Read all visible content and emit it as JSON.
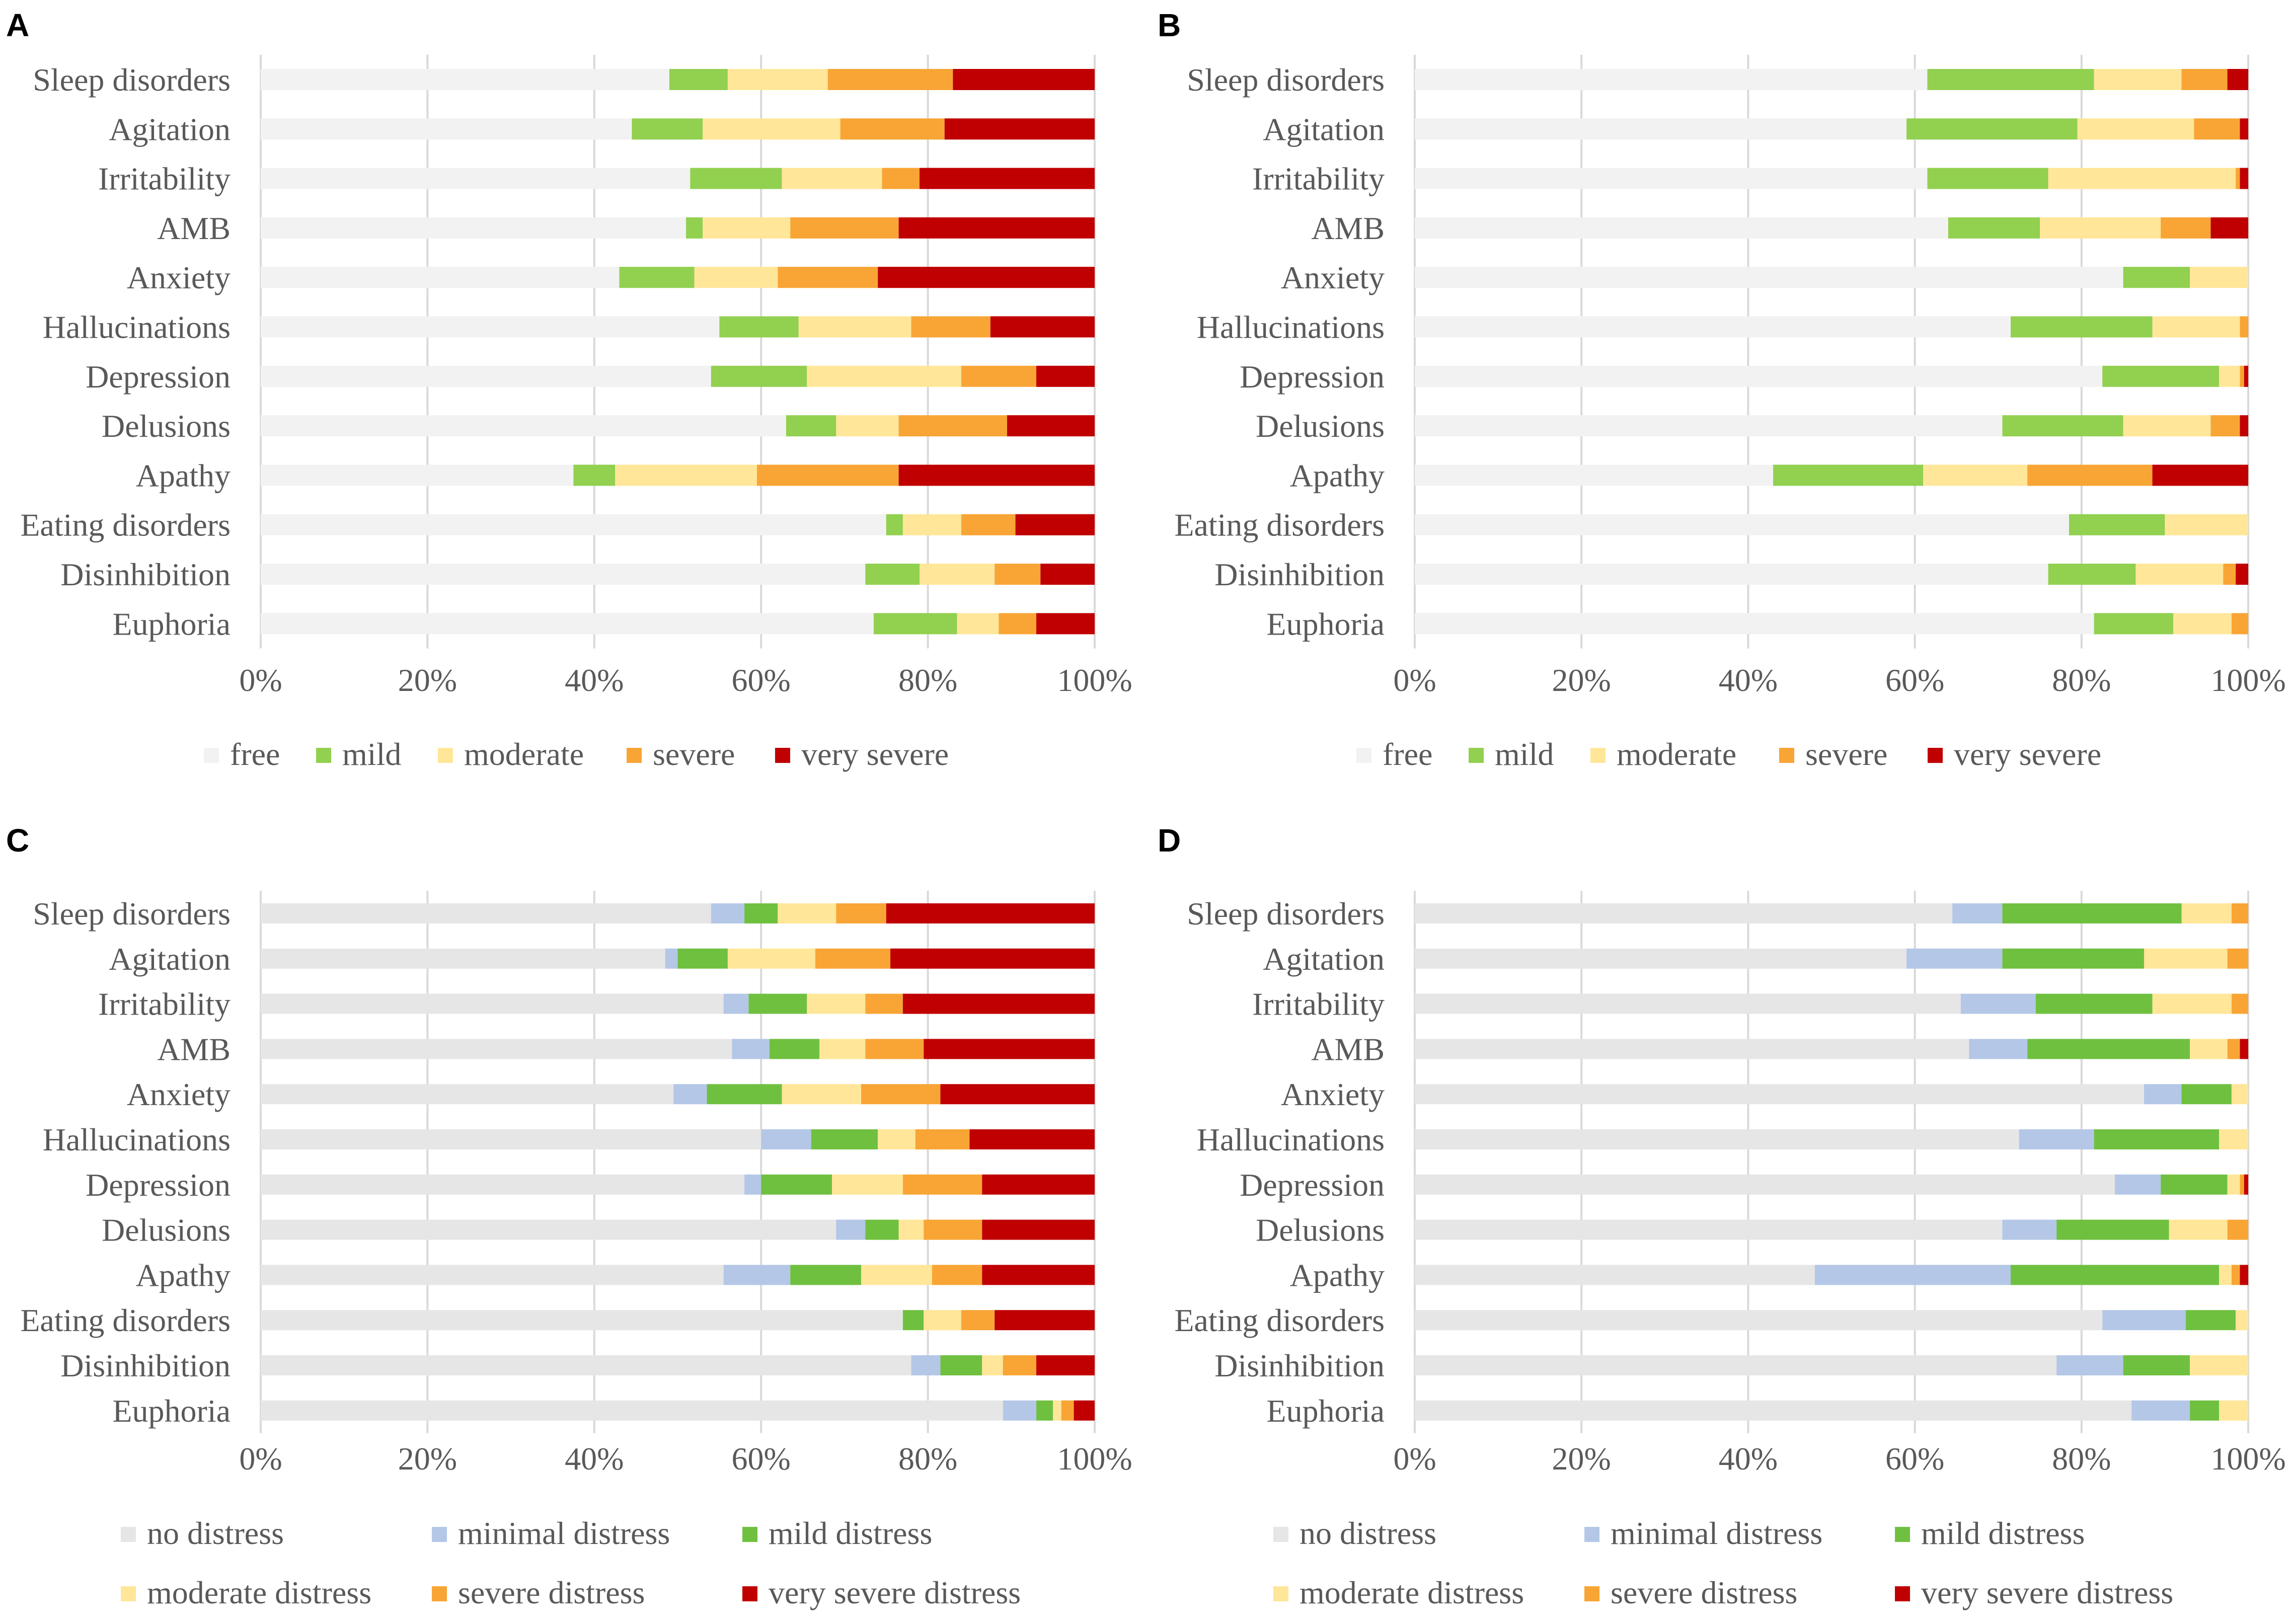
{
  "chart_data": [
    {
      "panel": "A",
      "type": "bar",
      "orientation": "horizontal",
      "stacked": "100%",
      "categories": [
        "Sleep disorders",
        "Agitation",
        "Irritability",
        "AMB",
        "Anxiety",
        "Hallucinations",
        "Depression",
        "Delusions",
        "Apathy",
        "Eating disorders",
        "Disinhibition",
        "Euphoria"
      ],
      "series": [
        {
          "name": "free",
          "color": "#f2f2f2",
          "values": [
            49,
            44.5,
            51.5,
            51,
            43,
            55,
            54,
            63,
            37.5,
            75,
            72.5,
            73.5
          ]
        },
        {
          "name": "mild",
          "color": "#92d050",
          "values": [
            7,
            8.5,
            11,
            2,
            9,
            9.5,
            11.5,
            6,
            5,
            2,
            6.5,
            10
          ]
        },
        {
          "name": "moderate",
          "color": "#ffe699",
          "values": [
            12,
            16.5,
            12,
            10.5,
            10,
            13.5,
            18.5,
            7.5,
            17,
            7,
            9,
            5
          ]
        },
        {
          "name": "severe",
          "color": "#f8a535",
          "values": [
            15,
            12.5,
            4.5,
            13,
            12,
            9.5,
            9,
            13,
            17,
            6.5,
            5.5,
            4.5
          ]
        },
        {
          "name": "very severe",
          "color": "#c00000",
          "values": [
            17,
            18,
            21,
            23.5,
            26,
            12.5,
            7,
            10.5,
            23.5,
            9.5,
            6.5,
            7
          ]
        }
      ],
      "xlim": [
        0,
        100
      ],
      "xticks": [
        "0%",
        "20%",
        "40%",
        "60%",
        "80%",
        "100%"
      ],
      "legend": [
        "free",
        "mild",
        "moderate",
        "severe",
        "very severe"
      ]
    },
    {
      "panel": "B",
      "type": "bar",
      "orientation": "horizontal",
      "stacked": "100%",
      "categories": [
        "Sleep disorders",
        "Agitation",
        "Irritability",
        "AMB",
        "Anxiety",
        "Hallucinations",
        "Depression",
        "Delusions",
        "Apathy",
        "Eating disorders",
        "Disinhibition",
        "Euphoria"
      ],
      "series": [
        {
          "name": "free",
          "color": "#f2f2f2",
          "values": [
            61.5,
            59,
            61.5,
            64,
            85,
            71.5,
            82.5,
            70.5,
            43,
            78.5,
            76,
            81.5
          ]
        },
        {
          "name": "mild",
          "color": "#92d050",
          "values": [
            20,
            20.5,
            14.5,
            11,
            8,
            17,
            14,
            14.5,
            18,
            11.5,
            10.5,
            9.5
          ]
        },
        {
          "name": "moderate",
          "color": "#ffe699",
          "values": [
            10.5,
            14,
            22.5,
            14.5,
            7,
            10.5,
            2.5,
            10.5,
            12.5,
            10,
            10.5,
            7
          ]
        },
        {
          "name": "severe",
          "color": "#f8a535",
          "values": [
            5.5,
            5.5,
            0.5,
            6,
            0,
            1,
            0.5,
            3.5,
            15,
            0,
            1.5,
            2
          ]
        },
        {
          "name": "very severe",
          "color": "#c00000",
          "values": [
            2.5,
            1,
            1,
            4.5,
            0,
            0,
            0.5,
            1,
            11.5,
            0,
            1.5,
            0
          ]
        }
      ],
      "xlim": [
        0,
        100
      ],
      "xticks": [
        "0%",
        "20%",
        "40%",
        "60%",
        "80%",
        "100%"
      ],
      "legend": [
        "free",
        "mild",
        "moderate",
        "severe",
        "very severe"
      ]
    },
    {
      "panel": "C",
      "type": "bar",
      "orientation": "horizontal",
      "stacked": "100%",
      "categories": [
        "Sleep disorders",
        "Agitation",
        "Irritability",
        "AMB",
        "Anxiety",
        "Hallucinations",
        "Depression",
        "Delusions",
        "Apathy",
        "Eating disorders",
        "Disinhibition",
        "Euphoria"
      ],
      "series": [
        {
          "name": "no distress",
          "color": "#e7e6e6",
          "values": [
            54,
            48.5,
            55.5,
            56.5,
            49.5,
            60,
            58,
            69,
            55.5,
            77,
            78,
            89
          ]
        },
        {
          "name": "minimal distress",
          "color": "#b4c7e7",
          "values": [
            4,
            1.5,
            3,
            4.5,
            4,
            6,
            2,
            3.5,
            8,
            0,
            3.5,
            4
          ]
        },
        {
          "name": "mild distress",
          "color": "#70c040",
          "values": [
            4,
            6,
            7,
            6,
            9,
            8,
            8.5,
            4,
            8.5,
            2.5,
            5,
            2
          ]
        },
        {
          "name": "moderate distress",
          "color": "#ffe699",
          "values": [
            7,
            10.5,
            7,
            5.5,
            9.5,
            4.5,
            8.5,
            3,
            8.5,
            4.5,
            2.5,
            1
          ]
        },
        {
          "name": "severe distress",
          "color": "#f8a535",
          "values": [
            6,
            9,
            4.5,
            7,
            9.5,
            6.5,
            9.5,
            7,
            6,
            4,
            4,
            1.5
          ]
        },
        {
          "name": "very severe distress",
          "color": "#c00000",
          "values": [
            25,
            24.5,
            23,
            20.5,
            18.5,
            15,
            13.5,
            13.5,
            13.5,
            12,
            7,
            2.5
          ]
        }
      ],
      "xlim": [
        0,
        100
      ],
      "xticks": [
        "0%",
        "20%",
        "40%",
        "60%",
        "80%",
        "100%"
      ],
      "legend": [
        "no distress",
        "minimal distress",
        "mild distress",
        "moderate distress",
        "severe distress",
        "very severe distress"
      ]
    },
    {
      "panel": "D",
      "type": "bar",
      "orientation": "horizontal",
      "stacked": "100%",
      "categories": [
        "Sleep disorders",
        "Agitation",
        "Irritability",
        "AMB",
        "Anxiety",
        "Hallucinations",
        "Depression",
        "Delusions",
        "Apathy",
        "Eating disorders",
        "Disinhibition",
        "Euphoria"
      ],
      "series": [
        {
          "name": "no distress",
          "color": "#e7e6e6",
          "values": [
            64.5,
            59,
            65.5,
            66.5,
            87.5,
            72.5,
            84,
            70.5,
            48,
            82.5,
            77,
            86
          ]
        },
        {
          "name": "minimal distress",
          "color": "#b4c7e7",
          "values": [
            6,
            11.5,
            9,
            7,
            4.5,
            9,
            5.5,
            6.5,
            23.5,
            10,
            8,
            7
          ]
        },
        {
          "name": "mild distress",
          "color": "#70c040",
          "values": [
            21.5,
            17,
            14,
            19.5,
            6,
            15,
            8,
            13.5,
            25,
            6,
            8,
            3.5
          ]
        },
        {
          "name": "moderate distress",
          "color": "#ffe699",
          "values": [
            6,
            10,
            9.5,
            4.5,
            2,
            3.5,
            1.5,
            7,
            1.5,
            1.5,
            7,
            3.5
          ]
        },
        {
          "name": "severe distress",
          "color": "#f8a535",
          "values": [
            2,
            2.5,
            2,
            1.5,
            0,
            0,
            0.5,
            2.5,
            1,
            0,
            0,
            0
          ]
        },
        {
          "name": "very severe distress",
          "color": "#c00000",
          "values": [
            0,
            0,
            0,
            1,
            0,
            0,
            0.5,
            0,
            1,
            0,
            0,
            0
          ]
        }
      ],
      "xlim": [
        0,
        100
      ],
      "xticks": [
        "0%",
        "20%",
        "40%",
        "60%",
        "80%",
        "100%"
      ],
      "legend": [
        "no distress",
        "minimal distress",
        "mild distress",
        "moderate distress",
        "severe distress",
        "very severe distress"
      ]
    }
  ]
}
